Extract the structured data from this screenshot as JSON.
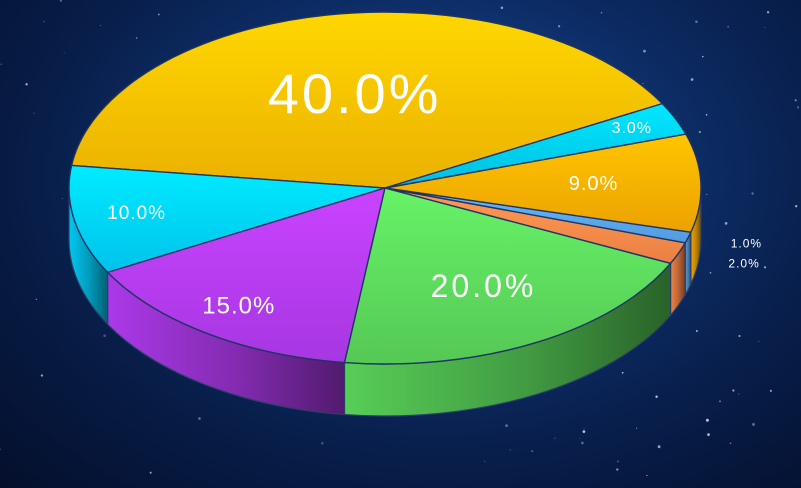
{
  "chart_data": {
    "type": "pie",
    "style": "3d",
    "title": "",
    "slices": [
      {
        "label": "40.0%",
        "value": 40,
        "color": "#FFC000"
      },
      {
        "label": "10.0%",
        "value": 10,
        "color": "#00D3FF"
      },
      {
        "label": "15.0%",
        "value": 15,
        "color": "#B43CF5"
      },
      {
        "label": "20.0%",
        "value": 20,
        "color": "#5CD95C"
      },
      {
        "label": "2.0%",
        "value": 2,
        "color": "#FF8A4A"
      },
      {
        "label": "1.0%",
        "value": 1,
        "color": "#5AA7F0"
      },
      {
        "label": "9.0%",
        "value": 9,
        "color": "#FFB000"
      },
      {
        "label": "3.0%",
        "value": 3,
        "color": "#00CFF5"
      }
    ]
  }
}
